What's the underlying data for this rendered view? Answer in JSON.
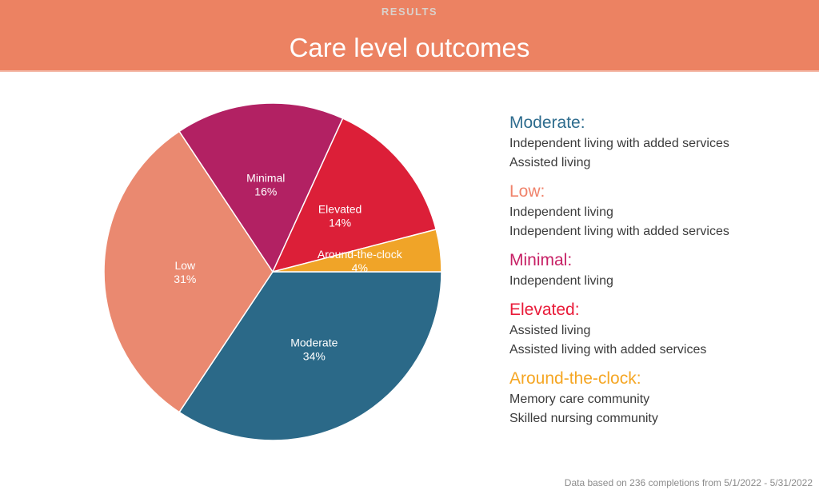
{
  "header": {
    "eyebrow": "RESULTS",
    "title": "Care level outcomes",
    "bg_color": "#EC8262",
    "eyebrow_color": "#DAD1CB",
    "title_color": "#FFFFFF"
  },
  "chart_data": {
    "type": "pie",
    "title": "Care level outcomes",
    "start_angle_deg": 0,
    "direction": "clockwise",
    "label_color": "#FFFFFF",
    "slice_stroke": "#FFFFFF",
    "slices": [
      {
        "label": "Moderate",
        "value": 34,
        "pct_label": "34%",
        "color": "#2B6988"
      },
      {
        "label": "Low",
        "value": 31,
        "pct_label": "31%",
        "color": "#EA8970"
      },
      {
        "label": "Minimal",
        "value": 16,
        "pct_label": "16%",
        "color": "#B22163"
      },
      {
        "label": "Elevated",
        "value": 14,
        "pct_label": "14%",
        "color": "#DC1F38"
      },
      {
        "label": "Around-the-clock",
        "value": 4,
        "pct_label": "4%",
        "color": "#F0A428"
      }
    ]
  },
  "legend": {
    "sections": [
      {
        "heading": "Moderate:",
        "color": "#2E6C8E",
        "items": [
          "Independent living with added services",
          "Assisted living"
        ]
      },
      {
        "heading": "Low:",
        "color": "#F0836B",
        "items": [
          "Independent living",
          "Independent living with added services"
        ]
      },
      {
        "heading": "Minimal:",
        "color": "#C72065",
        "items": [
          "Independent living"
        ]
      },
      {
        "heading": "Elevated:",
        "color": "#E91B39",
        "items": [
          "Assisted living",
          "Assisted living with added services"
        ]
      },
      {
        "heading": "Around-the-clock:",
        "color": "#F5A623",
        "items": [
          "Memory care community",
          "Skilled nursing community"
        ]
      }
    ]
  },
  "footer": {
    "note": "Data based on 236 completions from 5/1/2022 - 5/31/2022"
  }
}
